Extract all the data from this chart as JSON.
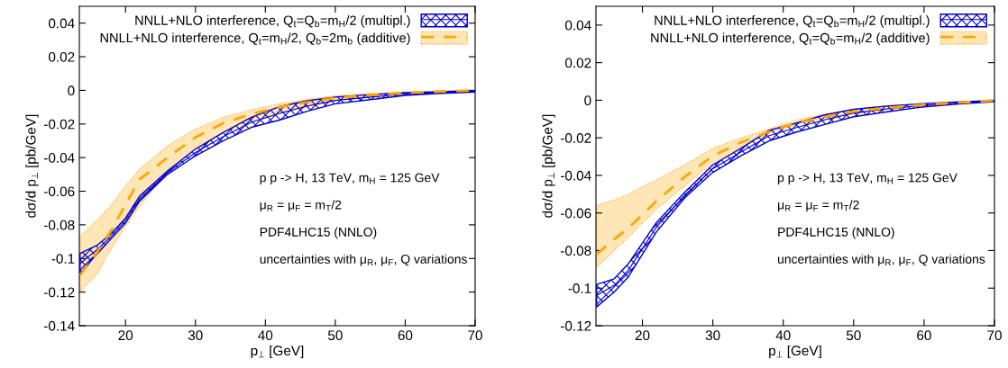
{
  "chart_data": [
    {
      "type": "line",
      "xlabel": "p$_{⊥}$ [GeV]",
      "ylabel": "dσ/d p$_{⊥}$ [pb/GeV]",
      "xlim": [
        13.4,
        70
      ],
      "ylim": [
        -0.14,
        0.05
      ],
      "xticks": [
        20,
        30,
        40,
        50,
        60,
        70
      ],
      "yticks": [
        -0.14,
        -0.12,
        -0.1,
        -0.08,
        -0.06,
        -0.04,
        -0.02,
        0,
        0.02,
        0.04
      ],
      "legend": "top right",
      "grid": false,
      "x": [
        13.5,
        16,
        18,
        20,
        22,
        26,
        30,
        34,
        38,
        42,
        46,
        50,
        55,
        60,
        65,
        70
      ],
      "series": [
        {
          "name": "NNLL+NLO interference, Q$_{t}$=Q$_{b}$=m$_{H}$/2 (multipl.)",
          "color": "#0000cc",
          "line_style": "solid",
          "values": [
            -0.103,
            -0.0945,
            -0.0865,
            -0.0775,
            -0.0645,
            -0.049,
            -0.037,
            -0.0275,
            -0.019,
            -0.0137,
            -0.0093,
            -0.006,
            -0.004,
            -0.0022,
            -0.0013,
            -0.0006
          ],
          "lower": [
            -0.109,
            -0.097,
            -0.088,
            -0.079,
            -0.066,
            -0.05,
            -0.039,
            -0.03,
            -0.022,
            -0.0177,
            -0.0124,
            -0.008,
            -0.0055,
            -0.003,
            -0.0018,
            -0.001
          ],
          "upper": [
            -0.097,
            -0.092,
            -0.085,
            -0.076,
            -0.063,
            -0.048,
            -0.035,
            -0.025,
            -0.016,
            -0.0097,
            -0.0062,
            -0.004,
            -0.0025,
            -0.0014,
            -0.0008,
            -0.0002
          ]
        },
        {
          "name": "NNLL+NLO interference, Q$_{t}$=m$_{H}$/2, Q$_{b}$=2m$_{b}$ (additive)",
          "color": "#ffa500",
          "line_style": "dashed",
          "values": [
            -0.11,
            -0.096,
            -0.083,
            -0.068,
            -0.053,
            -0.04,
            -0.028,
            -0.0195,
            -0.014,
            -0.01,
            -0.007,
            -0.0045,
            -0.0028,
            -0.0015,
            -0.0007,
            0
          ],
          "lower": [
            -0.12,
            -0.109,
            -0.094,
            -0.081,
            -0.069,
            -0.048,
            -0.034,
            -0.025,
            -0.019,
            -0.014,
            -0.01,
            -0.006,
            -0.004,
            -0.002,
            -0.001,
            0
          ],
          "upper": [
            -0.0867,
            -0.077,
            -0.068,
            -0.057,
            -0.047,
            -0.033,
            -0.023,
            -0.016,
            -0.0115,
            -0.008,
            -0.0053,
            -0.0032,
            -0.0018,
            -0.001,
            -0.0004,
            0
          ]
        }
      ],
      "annotations": [
        "p p -> H, 13 TeV, m$_{H}$ = 125 GeV",
        "μ$_{R}$ = μ$_{F}$ = m$_{T}$/2",
        "PDF4LHC15 (NNLO)",
        "uncertainties with μ$_{R}$, μ$_{F}$, Q variations"
      ]
    },
    {
      "type": "line",
      "xlabel": "p$_{⊥}$ [GeV]",
      "ylabel": "dσ/d p$_{⊥}$ [pb/GeV]",
      "xlim": [
        13.4,
        70
      ],
      "ylim": [
        -0.12,
        0.05
      ],
      "xticks": [
        20,
        30,
        40,
        50,
        60,
        70
      ],
      "yticks": [
        -0.12,
        -0.1,
        -0.08,
        -0.06,
        -0.04,
        -0.02,
        0,
        0.02,
        0.04
      ],
      "legend": "top right",
      "grid": false,
      "x": [
        13.5,
        16,
        18,
        20,
        22,
        26,
        30,
        34,
        38,
        42,
        46,
        50,
        55,
        60,
        65,
        70
      ],
      "series": [
        {
          "name": "NNLL+NLO interference, Q$_{t}$=Q$_{b}$=m$_{H}$/2 (multipl.)",
          "color": "#0000cc",
          "line_style": "solid",
          "values": [
            -0.104,
            -0.0985,
            -0.0905,
            -0.079,
            -0.0675,
            -0.0505,
            -0.0364,
            -0.0276,
            -0.0188,
            -0.0144,
            -0.0103,
            -0.0068,
            -0.0045,
            -0.0027,
            -0.0014,
            -0.0005
          ],
          "lower": [
            -0.11,
            -0.102,
            -0.094,
            -0.082,
            -0.07,
            -0.052,
            -0.0384,
            -0.0296,
            -0.0216,
            -0.0168,
            -0.0128,
            -0.0088,
            -0.006,
            -0.0035,
            -0.002,
            -0.0008
          ],
          "upper": [
            -0.098,
            -0.095,
            -0.087,
            -0.076,
            -0.065,
            -0.049,
            -0.0344,
            -0.0256,
            -0.016,
            -0.012,
            -0.0077,
            -0.0048,
            -0.003,
            -0.0018,
            -0.0008,
            -0.0001
          ]
        },
        {
          "name": "NNLL+NLO interference, Q$_{t}$=Q$_{b}$=m$_{H}$/2 (additive)",
          "color": "#ffa500",
          "line_style": "dashed",
          "values": [
            -0.082,
            -0.074,
            -0.068,
            -0.061,
            -0.0536,
            -0.0408,
            -0.0296,
            -0.0224,
            -0.0168,
            -0.012,
            -0.0088,
            -0.006,
            -0.004,
            -0.0024,
            -0.0012,
            -0.0002
          ],
          "lower": [
            -0.089,
            -0.08,
            -0.073,
            -0.0655,
            -0.058,
            -0.0456,
            -0.0336,
            -0.0248,
            -0.0176,
            -0.0128,
            -0.0096,
            -0.0072,
            -0.005,
            -0.003,
            -0.0015,
            -0.0003
          ],
          "upper": [
            -0.056,
            -0.053,
            -0.05,
            -0.046,
            -0.0424,
            -0.0344,
            -0.0256,
            -0.02,
            -0.0152,
            -0.0104,
            -0.0072,
            -0.0048,
            -0.003,
            -0.0018,
            -0.0008,
            0
          ]
        }
      ],
      "annotations": [
        "p p -> H, 13 TeV, m$_{H}$ = 125 GeV",
        "μ$_{R}$ = μ$_{F}$ = m$_{T}$/2",
        "PDF4LHC15 (NNLO)",
        "uncertainties with μ$_{R}$, μ$_{F}$, Q variations"
      ]
    }
  ]
}
